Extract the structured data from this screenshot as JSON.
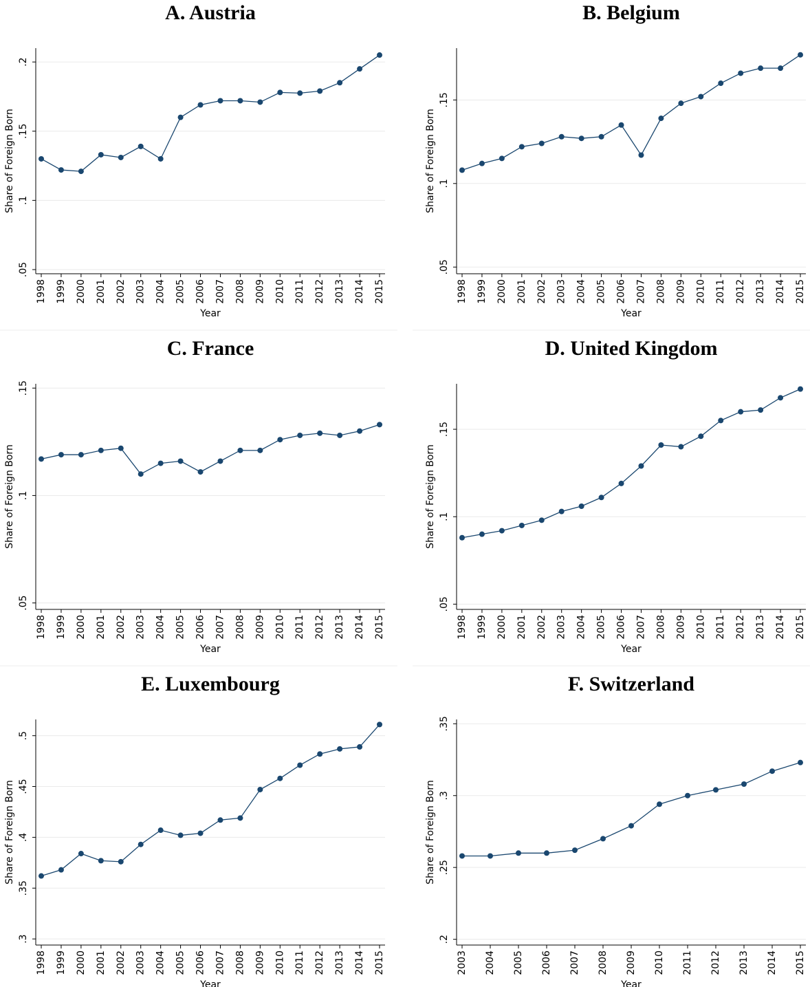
{
  "chart_data": [
    {
      "type": "line",
      "title": "A. Austria",
      "x_label": "Year",
      "y_label": "Share of Foreign Born",
      "color": "#1a476f",
      "grid": true,
      "categories": [
        "1998",
        "1999",
        "2000",
        "2001",
        "2002",
        "2003",
        "2004",
        "2005",
        "2006",
        "2007",
        "2008",
        "2009",
        "2010",
        "2011",
        "2012",
        "2013",
        "2014",
        "2015"
      ],
      "values": [
        0.13,
        0.122,
        0.121,
        0.133,
        0.131,
        0.139,
        0.13,
        0.16,
        0.169,
        0.172,
        0.172,
        0.171,
        0.178,
        0.1775,
        0.179,
        0.185,
        0.195,
        0.205
      ],
      "ylim": [
        0.047,
        0.21
      ],
      "yticks": [
        {
          "value": 0.05,
          "label": ".05"
        },
        {
          "value": 0.1,
          "label": ".1"
        },
        {
          "value": 0.15,
          "label": ".15"
        },
        {
          "value": 0.2,
          "label": ".2"
        }
      ]
    },
    {
      "type": "line",
      "title": "B. Belgium",
      "x_label": "Year",
      "y_label": "Share of Foreign Born",
      "color": "#1a476f",
      "grid": true,
      "categories": [
        "1998",
        "1999",
        "2000",
        "2001",
        "2002",
        "2003",
        "2004",
        "2005",
        "2006",
        "2007",
        "2008",
        "2009",
        "2010",
        "2011",
        "2012",
        "2013",
        "2014",
        "2015"
      ],
      "values": [
        0.108,
        0.112,
        0.115,
        0.122,
        0.124,
        0.128,
        0.127,
        0.128,
        0.135,
        0.117,
        0.139,
        0.148,
        0.152,
        0.16,
        0.166,
        0.169,
        0.169,
        0.177
      ],
      "ylim": [
        0.046,
        0.181
      ],
      "yticks": [
        {
          "value": 0.05,
          "label": ".05"
        },
        {
          "value": 0.1,
          "label": ".1"
        },
        {
          "value": 0.15,
          "label": ".15"
        }
      ]
    },
    {
      "type": "line",
      "title": "C. France",
      "x_label": "Year",
      "y_label": "Share of Foreign Born",
      "color": "#1a476f",
      "grid": true,
      "categories": [
        "1998",
        "1999",
        "2000",
        "2001",
        "2002",
        "2003",
        "2004",
        "2005",
        "2006",
        "2007",
        "2008",
        "2009",
        "2010",
        "2011",
        "2012",
        "2013",
        "2014",
        "2015"
      ],
      "values": [
        0.117,
        0.119,
        0.119,
        0.121,
        0.122,
        0.11,
        0.115,
        0.116,
        0.111,
        0.116,
        0.121,
        0.121,
        0.126,
        0.128,
        0.129,
        0.128,
        0.13,
        0.133
      ],
      "ylim": [
        0.047,
        0.152
      ],
      "yticks": [
        {
          "value": 0.05,
          "label": ".05"
        },
        {
          "value": 0.1,
          "label": ".1"
        },
        {
          "value": 0.15,
          "label": ".15"
        }
      ]
    },
    {
      "type": "line",
      "title": "D. United Kingdom",
      "x_label": "Year",
      "y_label": "Share of Foreign Born",
      "color": "#1a476f",
      "grid": true,
      "categories": [
        "1998",
        "1999",
        "2000",
        "2001",
        "2002",
        "2003",
        "2004",
        "2005",
        "2006",
        "2007",
        "2008",
        "2009",
        "2010",
        "2011",
        "2012",
        "2013",
        "2014",
        "2015"
      ],
      "values": [
        0.088,
        0.09,
        0.092,
        0.095,
        0.098,
        0.103,
        0.106,
        0.111,
        0.119,
        0.129,
        0.141,
        0.14,
        0.146,
        0.155,
        0.16,
        0.161,
        0.168,
        0.173
      ],
      "ylim": [
        0.047,
        0.176
      ],
      "yticks": [
        {
          "value": 0.05,
          "label": ".05"
        },
        {
          "value": 0.1,
          "label": ".1"
        },
        {
          "value": 0.15,
          "label": ".15"
        }
      ]
    },
    {
      "type": "line",
      "title": "E. Luxembourg",
      "x_label": "Year",
      "y_label": "Share of Foreign Born",
      "color": "#1a476f",
      "grid": true,
      "categories": [
        "1998",
        "1999",
        "2000",
        "2001",
        "2002",
        "2003",
        "2004",
        "2005",
        "2006",
        "2007",
        "2008",
        "2009",
        "2010",
        "2011",
        "2012",
        "2013",
        "2014",
        "2015"
      ],
      "values": [
        0.362,
        0.368,
        0.384,
        0.377,
        0.376,
        0.393,
        0.407,
        0.402,
        0.404,
        0.417,
        0.419,
        0.447,
        0.458,
        0.471,
        0.482,
        0.487,
        0.489,
        0.511
      ],
      "ylim": [
        0.294,
        0.516
      ],
      "yticks": [
        {
          "value": 0.3,
          "label": ".3"
        },
        {
          "value": 0.35,
          "label": ".35"
        },
        {
          "value": 0.4,
          "label": ".4"
        },
        {
          "value": 0.45,
          "label": ".45"
        },
        {
          "value": 0.5,
          "label": ".5"
        }
      ]
    },
    {
      "type": "line",
      "title": "F. Switzerland",
      "x_label": "Year",
      "y_label": "Share of Foreign Born",
      "color": "#1a476f",
      "grid": true,
      "categories": [
        "2003",
        "2004",
        "2005",
        "2006",
        "2007",
        "2008",
        "2009",
        "2010",
        "2011",
        "2012",
        "2013",
        "2014",
        "2015"
      ],
      "values": [
        0.258,
        0.258,
        0.26,
        0.26,
        0.262,
        0.27,
        0.279,
        0.294,
        0.3,
        0.304,
        0.308,
        0.317,
        0.323
      ],
      "ylim": [
        0.196,
        0.353
      ],
      "yticks": [
        {
          "value": 0.2,
          "label": ".2"
        },
        {
          "value": 0.25,
          "label": ".25"
        },
        {
          "value": 0.3,
          "label": ".3"
        },
        {
          "value": 0.35,
          "label": ".35"
        }
      ]
    }
  ]
}
